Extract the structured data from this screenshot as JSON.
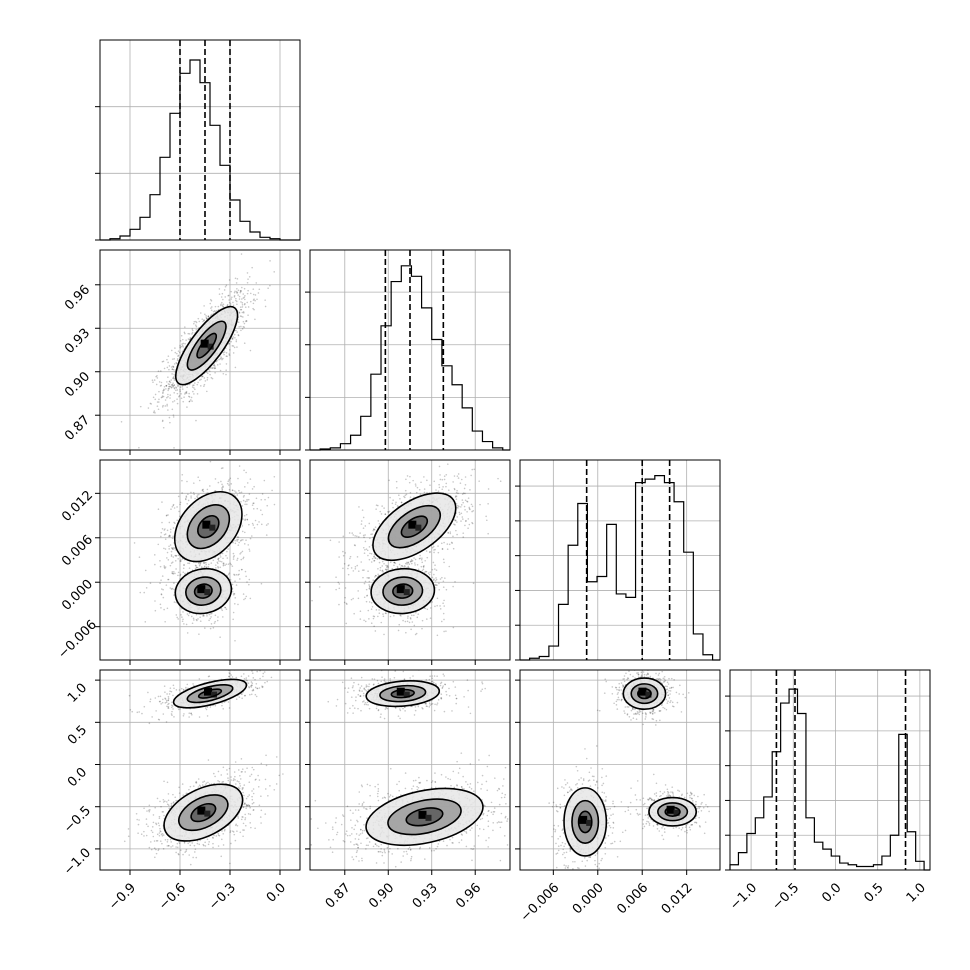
{
  "chart_data": {
    "type": "corner",
    "title": "",
    "grid": true,
    "parameters": [
      {
        "range": [
          -1.08,
          0.12
        ],
        "ticks": [
          -0.9,
          -0.6,
          -0.3,
          0.0
        ],
        "tick_labels": [
          "−0.9",
          "−0.6",
          "−0.3",
          "0.0"
        ],
        "quantiles": [
          -0.6,
          -0.45,
          -0.3
        ],
        "hist": {
          "bin_edges": [
            -1.08,
            -1.02,
            -0.96,
            -0.9,
            -0.84,
            -0.78,
            -0.72,
            -0.66,
            -0.6,
            -0.54,
            -0.48,
            -0.42,
            -0.36,
            -0.3,
            -0.24,
            -0.18,
            -0.12,
            -0.06,
            0.0,
            0.06,
            0.12
          ],
          "counts": [
            0,
            1,
            3,
            8,
            17,
            34,
            62,
            95,
            125,
            135,
            118,
            86,
            56,
            30,
            14,
            6,
            2,
            1,
            0,
            0
          ]
        },
        "hist_ymax": 150,
        "hist_yticks": [
          0,
          50,
          100
        ]
      },
      {
        "range": [
          0.846,
          0.984
        ],
        "ticks": [
          0.87,
          0.9,
          0.93,
          0.96
        ],
        "tick_labels": [
          "0.87",
          "0.90",
          "0.93",
          "0.96"
        ],
        "quantiles": [
          0.898,
          0.915,
          0.938
        ],
        "hist": {
          "bin_edges": [
            0.846,
            0.853,
            0.86,
            0.867,
            0.874,
            0.881,
            0.888,
            0.895,
            0.902,
            0.909,
            0.916,
            0.923,
            0.93,
            0.937,
            0.944,
            0.951,
            0.958,
            0.965,
            0.972,
            0.979,
            0.984
          ],
          "counts": [
            0,
            1,
            2,
            6,
            14,
            32,
            72,
            118,
            160,
            175,
            165,
            135,
            105,
            80,
            62,
            40,
            18,
            8,
            2,
            0
          ]
        },
        "hist_ymax": 190,
        "hist_yticks": [
          0,
          50,
          100,
          150
        ]
      },
      {
        "range": [
          -0.0105,
          0.0165
        ],
        "ticks": [
          -0.006,
          0.0,
          0.006,
          0.012
        ],
        "tick_labels": [
          "−0.006",
          "0.000",
          "0.006",
          "0.012"
        ],
        "quantiles": [
          -0.0015,
          0.006,
          0.0097
        ],
        "hist": {
          "bin_edges": [
            -0.0105,
            -0.0092,
            -0.0079,
            -0.0066,
            -0.0053,
            -0.004,
            -0.0027,
            -0.0014,
            -0.0001,
            0.0012,
            0.0025,
            0.0038,
            0.0051,
            0.0064,
            0.0077,
            0.009,
            0.0103,
            0.0116,
            0.0129,
            0.0142,
            0.0155,
            0.0165
          ],
          "counts": [
            0,
            1,
            2,
            8,
            32,
            66,
            90,
            45,
            48,
            78,
            38,
            36,
            102,
            104,
            106,
            102,
            91,
            62,
            15,
            3,
            0
          ]
        },
        "hist_ymax": 115,
        "hist_yticks": [
          0,
          20,
          40,
          60,
          80,
          100
        ]
      },
      {
        "range": [
          -1.25,
          1.12
        ],
        "ticks": [
          -1.0,
          -0.5,
          0.0,
          0.5,
          1.0
        ],
        "tick_labels": [
          "−1.0",
          "−0.5",
          "0.0",
          "0.5",
          "1.0"
        ],
        "quantiles": [
          -0.7,
          -0.48,
          0.83
        ],
        "hist": {
          "bin_edges": [
            -1.25,
            -1.15,
            -1.05,
            -0.95,
            -0.85,
            -0.75,
            -0.65,
            -0.55,
            -0.45,
            -0.35,
            -0.25,
            -0.15,
            -0.05,
            0.05,
            0.15,
            0.25,
            0.35,
            0.45,
            0.55,
            0.65,
            0.75,
            0.85,
            0.95,
            1.05,
            1.12
          ],
          "counts": [
            3,
            10,
            21,
            30,
            42,
            68,
            96,
            104,
            90,
            30,
            16,
            12,
            8,
            4,
            3,
            2,
            2,
            3,
            8,
            20,
            78,
            22,
            5,
            0
          ]
        },
        "hist_ymax": 115,
        "hist_yticks": [
          0,
          20,
          40,
          60,
          80,
          100
        ]
      }
    ],
    "pairs": [
      {
        "row": 1,
        "col": 0,
        "clusters": [
          {
            "mx": -0.44,
            "my": 0.918,
            "sx": 0.11,
            "sy": 0.016,
            "rho": 0.78,
            "w": 1.0
          }
        ]
      },
      {
        "row": 2,
        "col": 0,
        "clusters": [
          {
            "mx": -0.43,
            "my": 0.0075,
            "sx": 0.12,
            "sy": 0.0028,
            "rho": 0.35,
            "w": 0.62
          },
          {
            "mx": -0.46,
            "my": -0.0012,
            "sx": 0.1,
            "sy": 0.0018,
            "rho": 0.1,
            "w": 0.38
          }
        ]
      },
      {
        "row": 2,
        "col": 1,
        "clusters": [
          {
            "mx": 0.918,
            "my": 0.0075,
            "sx": 0.017,
            "sy": 0.0027,
            "rho": 0.55,
            "w": 0.62
          },
          {
            "mx": 0.91,
            "my": -0.0012,
            "sx": 0.013,
            "sy": 0.0018,
            "rho": 0.05,
            "w": 0.38
          }
        ]
      },
      {
        "row": 3,
        "col": 0,
        "clusters": [
          {
            "mx": -0.42,
            "my": 0.84,
            "sx": 0.13,
            "sy": 0.1,
            "rho": 0.6,
            "w": 0.38
          },
          {
            "mx": -0.46,
            "my": -0.57,
            "sx": 0.14,
            "sy": 0.2,
            "rho": 0.45,
            "w": 0.62
          }
        ]
      },
      {
        "row": 3,
        "col": 1,
        "clusters": [
          {
            "mx": 0.91,
            "my": 0.84,
            "sx": 0.015,
            "sy": 0.09,
            "rho": 0.2,
            "w": 0.38
          },
          {
            "mx": 0.925,
            "my": -0.62,
            "sx": 0.024,
            "sy": 0.2,
            "rho": 0.35,
            "w": 0.62
          }
        ]
      },
      {
        "row": 3,
        "col": 2,
        "clusters": [
          {
            "mx": 0.0063,
            "my": 0.84,
            "sx": 0.0017,
            "sy": 0.11,
            "rho": 0.0,
            "w": 0.38
          },
          {
            "mx": 0.0101,
            "my": -0.56,
            "sx": 0.0019,
            "sy": 0.1,
            "rho": 0.0,
            "w": 0.3
          },
          {
            "mx": -0.0017,
            "my": -0.68,
            "sx": 0.0017,
            "sy": 0.24,
            "rho": 0.0,
            "w": 0.32
          }
        ]
      }
    ]
  }
}
